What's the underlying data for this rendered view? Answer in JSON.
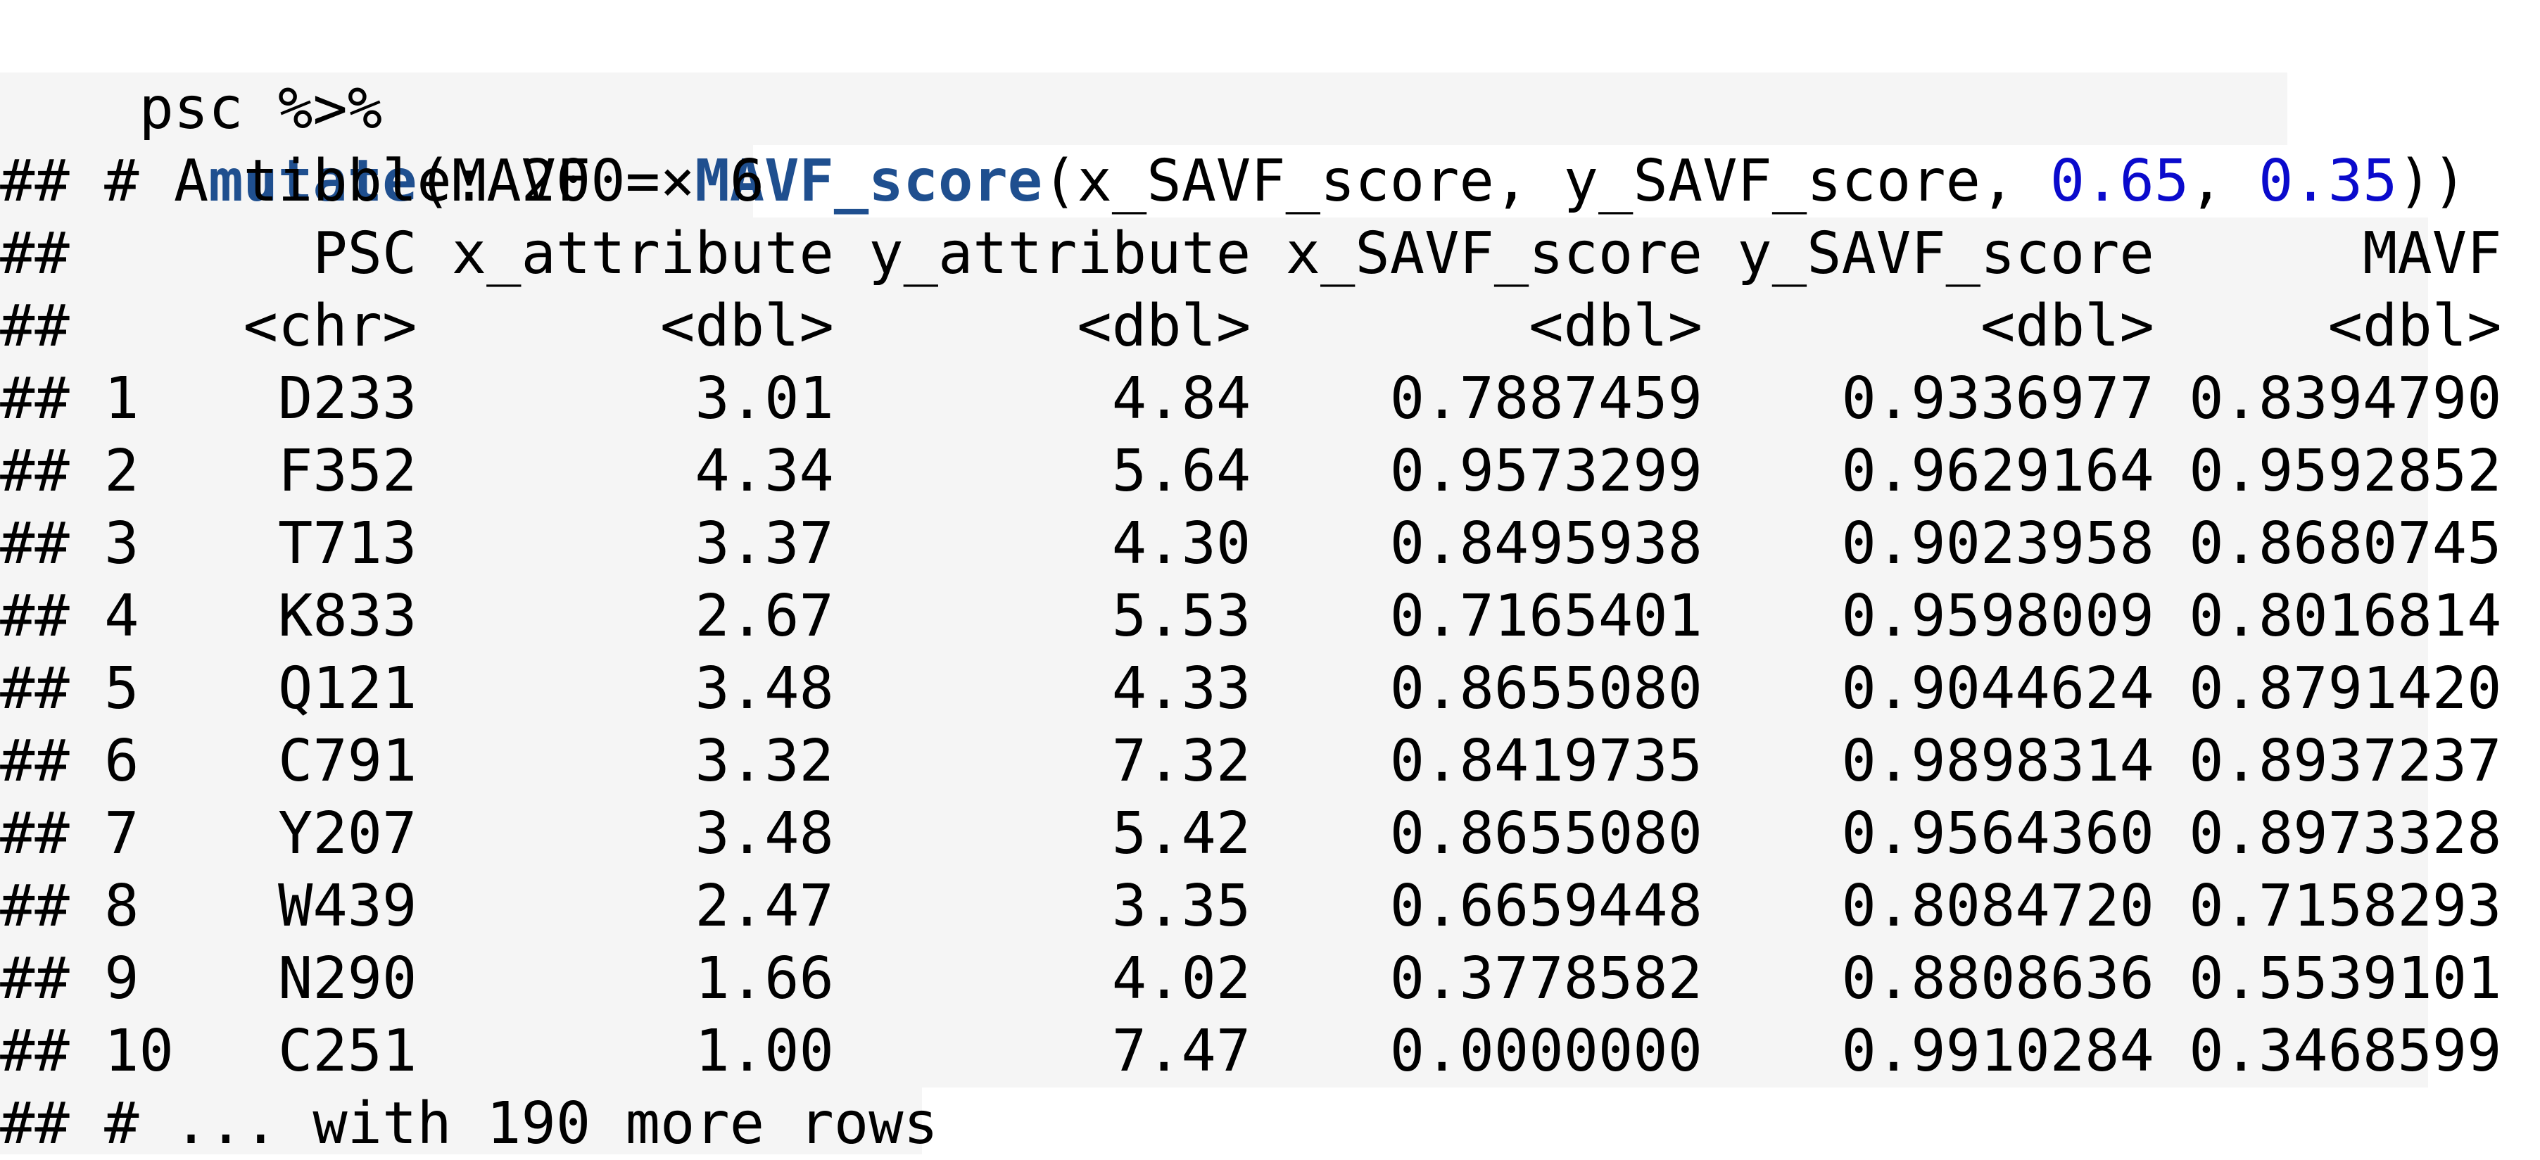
{
  "code": {
    "line1": "psc %>%",
    "indent": "  ",
    "func1": "mutate",
    "open1": "(",
    "assign_lhs": "MAVF = ",
    "func2": "MAVF_score",
    "args_pre": "(x_SAVF_score, y_SAVF_score, ",
    "arg_w1": "0.65",
    "comma": ", ",
    "arg_w2": "0.35",
    "close": "))"
  },
  "output": {
    "header": "## # A tibble: 200 × 6",
    "columns_line": "##       PSC x_attribute y_attribute x_SAVF_score y_SAVF_score      MAVF",
    "types_line": "##     <chr>       <dbl>       <dbl>        <dbl>        <dbl>     <dbl>",
    "rows": [
      "## 1    D233        3.01        4.84    0.7887459    0.9336977 0.8394790",
      "## 2    F352        4.34        5.64    0.9573299    0.9629164 0.9592852",
      "## 3    T713        3.37        4.30    0.8495938    0.9023958 0.8680745",
      "## 4    K833        2.67        5.53    0.7165401    0.9598009 0.8016814",
      "## 5    Q121        3.48        4.33    0.8655080    0.9044624 0.8791420",
      "## 6    C791        3.32        7.32    0.8419735    0.9898314 0.8937237",
      "## 7    Y207        3.48        5.42    0.8655080    0.9564360 0.8973328",
      "## 8    W439        2.47        3.35    0.6659448    0.8084720 0.7158293",
      "## 9    N290        1.66        4.02    0.3778582    0.8808636 0.5539101",
      "## 10   C251        1.00        7.47    0.0000000    0.9910284 0.3468599"
    ],
    "footer": "## # ... with 190 more rows"
  },
  "colors": {
    "keyword": "#1f4f8f",
    "number": "#0a0acc",
    "background_shade": "#f5f5f5"
  }
}
